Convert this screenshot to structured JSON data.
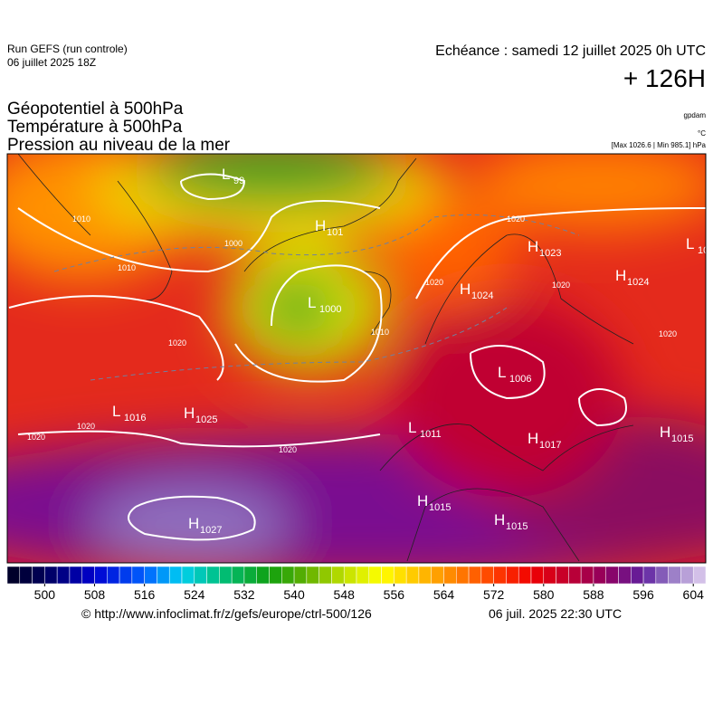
{
  "header": {
    "run": "Run GEFS (run controle)",
    "run_date": "06 juillet 2025 18Z",
    "valid": "Echéance : samedi 12 juillet 2025 0h UTC",
    "lead": "+ 126H",
    "fields": [
      "Géopotentiel à 500hPa",
      "Température à 500hPa",
      "Pression au niveau de la mer"
    ],
    "units": [
      "gpdam",
      "°C"
    ],
    "extremes": "[Max 1026.6 | Min 985.1] hPa"
  },
  "centers": [
    {
      "type": "L",
      "value": "99"
    },
    {
      "type": "H",
      "value": "101"
    },
    {
      "type": "L",
      "value": "1000"
    },
    {
      "type": "H",
      "value": "1024"
    },
    {
      "type": "H",
      "value": "1023"
    },
    {
      "type": "H",
      "value": "1024"
    },
    {
      "type": "L",
      "value": "10"
    },
    {
      "type": "L",
      "value": "1006"
    },
    {
      "type": "L",
      "value": "1011"
    },
    {
      "type": "H",
      "value": "1017"
    },
    {
      "type": "H",
      "value": "1015"
    },
    {
      "type": "L",
      "value": "1016"
    },
    {
      "type": "H",
      "value": "1025"
    },
    {
      "type": "H",
      "value": "1027"
    },
    {
      "type": "H",
      "value": "1015"
    },
    {
      "type": "H",
      "value": "1015"
    }
  ],
  "isobar_labels": [
    "1010",
    "1010",
    "1000",
    "1020",
    "1020",
    "1020",
    "1020",
    "1020",
    "1020",
    "1010",
    "1020",
    "1020"
  ],
  "colorbar": {
    "range": [
      494,
      606
    ],
    "step": 2,
    "ticks": [
      500,
      508,
      516,
      524,
      532,
      540,
      548,
      556,
      564,
      572,
      580,
      588,
      596,
      604
    ],
    "stops": [
      [
        494,
        "#000020"
      ],
      [
        500,
        "#00005a"
      ],
      [
        508,
        "#0000d0"
      ],
      [
        516,
        "#0060ff"
      ],
      [
        522,
        "#00d0f0"
      ],
      [
        528,
        "#00c080"
      ],
      [
        536,
        "#10a010"
      ],
      [
        542,
        "#60b000"
      ],
      [
        548,
        "#c0e000"
      ],
      [
        554,
        "#ffff00"
      ],
      [
        560,
        "#ffc000"
      ],
      [
        566,
        "#ff8000"
      ],
      [
        572,
        "#ff4000"
      ],
      [
        578,
        "#f00000"
      ],
      [
        584,
        "#c00030"
      ],
      [
        590,
        "#900060"
      ],
      [
        596,
        "#6020a0"
      ],
      [
        600,
        "#9070c0"
      ],
      [
        606,
        "#e0d0f0"
      ]
    ]
  },
  "footer": {
    "source": "© http://www.infoclimat.fr/z/gefs/europe/ctrl-500/126",
    "generated": "06 juil. 2025 22:30 UTC"
  }
}
